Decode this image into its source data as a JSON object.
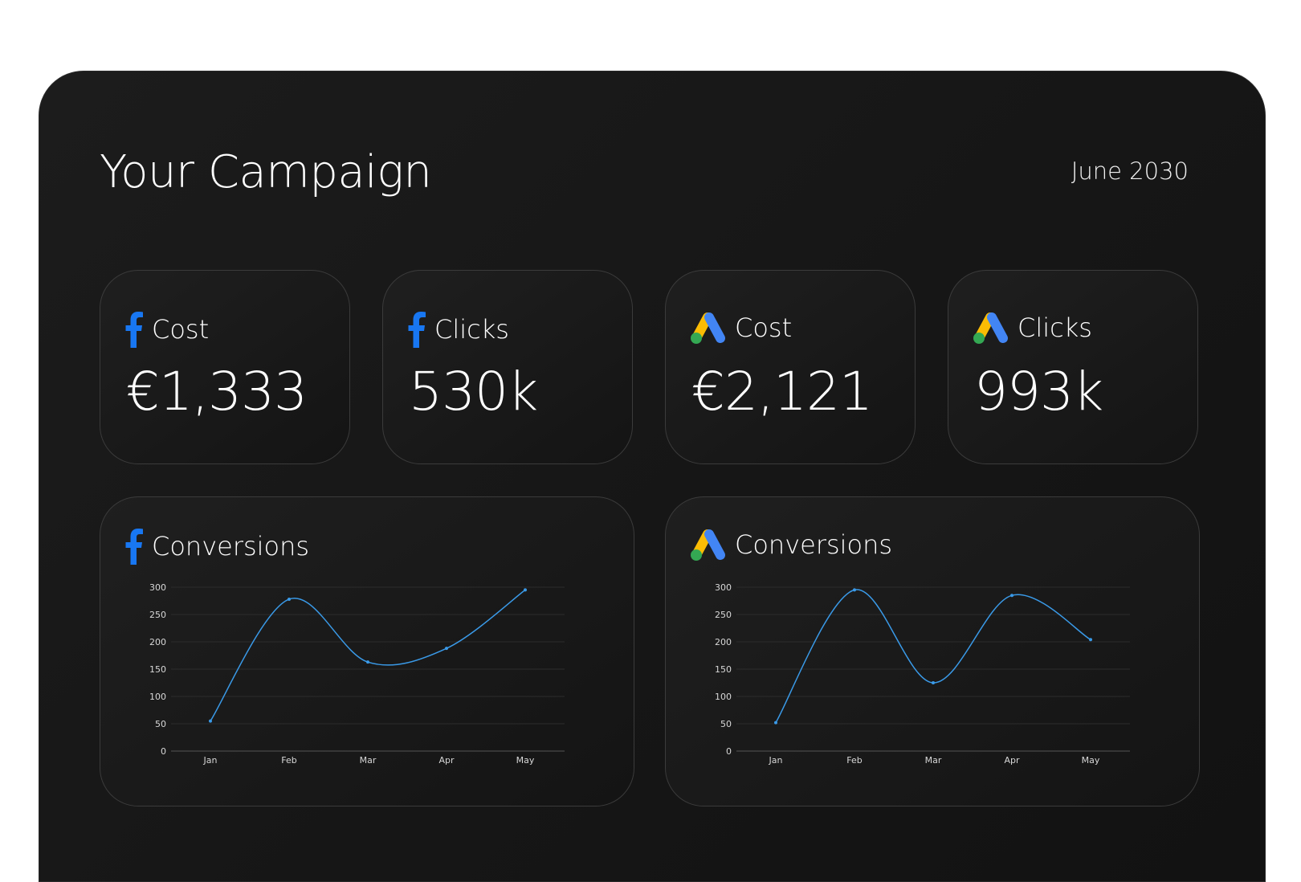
{
  "header": {
    "title": "Your Campaign",
    "date": "June 2030"
  },
  "stats": [
    {
      "platform": "facebook",
      "icon": "facebook-icon",
      "label": "Cost",
      "value": "€1,333"
    },
    {
      "platform": "facebook",
      "icon": "facebook-icon",
      "label": "Clicks",
      "value": "530k"
    },
    {
      "platform": "google-ads",
      "icon": "google-ads-icon",
      "label": "Cost",
      "value": "€2,121"
    },
    {
      "platform": "google-ads",
      "icon": "google-ads-icon",
      "label": "Clicks",
      "value": "993k"
    }
  ],
  "colors": {
    "line": "#3a9ae8",
    "facebook": "#1877f2",
    "ads_blue": "#4285f4",
    "ads_yellow": "#fbbc04",
    "ads_green": "#34a853"
  },
  "chart_data": [
    {
      "type": "line",
      "platform": "facebook",
      "title": "Conversions",
      "categories": [
        "Jan",
        "Feb",
        "Mar",
        "Apr",
        "May"
      ],
      "values": [
        55,
        278,
        163,
        188,
        295
      ],
      "yticks": [
        0,
        50,
        100,
        150,
        200,
        250,
        300
      ],
      "ylim": [
        0,
        300
      ],
      "grid": true
    },
    {
      "type": "line",
      "platform": "google-ads",
      "title": "Conversions",
      "categories": [
        "Jan",
        "Feb",
        "Mar",
        "Apr",
        "May"
      ],
      "values": [
        52,
        295,
        125,
        285,
        204
      ],
      "yticks": [
        0,
        50,
        100,
        150,
        200,
        250,
        300
      ],
      "ylim": [
        0,
        300
      ],
      "grid": true
    }
  ]
}
